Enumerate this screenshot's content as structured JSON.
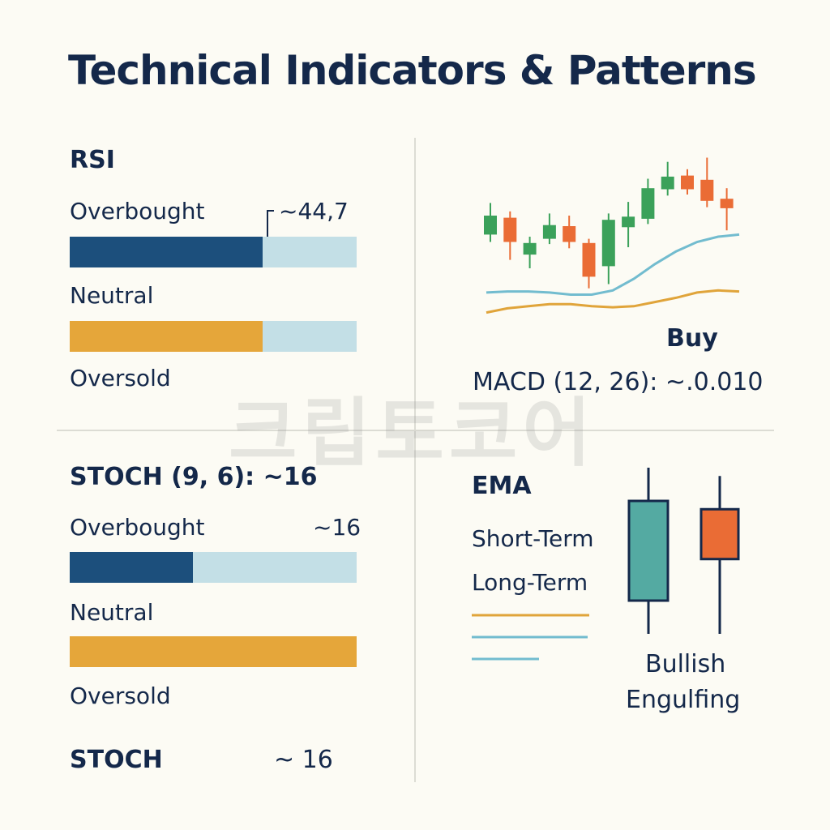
{
  "title": "Technical Indicators & Patterns",
  "watermark": "크립토코어",
  "colors": {
    "navy": "#1c4f7c",
    "light_blue": "#c3dfe6",
    "gold": "#e5a63a",
    "green": "#3ba15a",
    "orange": "#ea6c35",
    "teal": "#54aaa2",
    "teal_line": "#72bccf",
    "gold_line": "#e0a43a"
  },
  "rsi": {
    "heading": "RSI",
    "value_label": "~44,7",
    "bars": [
      {
        "label": "Overbought",
        "fill": 0.673
      },
      {
        "label": "Neutral",
        "fill": 0.673
      },
      {
        "label": "Oversold"
      }
    ]
  },
  "stoch_panel": {
    "heading": "STOCH (9, 6): ~16",
    "value_label": "~16",
    "bars": [
      {
        "label": "Overbought",
        "fill": 0.43
      },
      {
        "label": "Neutral",
        "fill": 1.0
      },
      {
        "label": "Oversold"
      }
    ],
    "footer_name": "STOCH",
    "footer_value": "~ 16"
  },
  "macd": {
    "signal": "Buy",
    "label": "MACD (12, 26): ~.0.010"
  },
  "ema": {
    "heading": "EMA",
    "short_label": "Short-Term",
    "long_label": "Long-Term",
    "legend_lines": [
      "gold",
      "teal",
      "teal"
    ]
  },
  "pattern": {
    "line1": "Bullish",
    "line2": "Engulfing"
  },
  "chart_data": [
    {
      "type": "candlestick",
      "candles": [
        {
          "dir": "up",
          "open": 0.62,
          "close": 0.8,
          "high": 0.92,
          "low": 0.55
        },
        {
          "dir": "down",
          "open": 0.78,
          "close": 0.55,
          "high": 0.84,
          "low": 0.38
        },
        {
          "dir": "up",
          "open": 0.43,
          "close": 0.54,
          "high": 0.6,
          "low": 0.3
        },
        {
          "dir": "up",
          "open": 0.58,
          "close": 0.71,
          "high": 0.82,
          "low": 0.53
        },
        {
          "dir": "down",
          "open": 0.7,
          "close": 0.55,
          "high": 0.8,
          "low": 0.49
        },
        {
          "dir": "down",
          "open": 0.54,
          "close": 0.22,
          "high": 0.58,
          "low": 0.11
        },
        {
          "dir": "up",
          "open": 0.32,
          "close": 0.76,
          "high": 0.82,
          "low": 0.15
        },
        {
          "dir": "up",
          "open": 0.69,
          "close": 0.79,
          "high": 0.93,
          "low": 0.5
        },
        {
          "dir": "up",
          "open": 0.77,
          "close": 1.06,
          "high": 1.15,
          "low": 0.72
        },
        {
          "dir": "up",
          "open": 1.05,
          "close": 1.17,
          "high": 1.31,
          "low": 0.99
        },
        {
          "dir": "down",
          "open": 1.18,
          "close": 1.05,
          "high": 1.24,
          "low": 1.0
        },
        {
          "dir": "down",
          "open": 1.14,
          "close": 0.94,
          "high": 1.35,
          "low": 0.88
        },
        {
          "dir": "down",
          "open": 0.96,
          "close": 0.87,
          "high": 1.06,
          "low": 0.66
        }
      ],
      "ema_short": [
        0.07,
        0.08,
        0.08,
        0.07,
        0.05,
        0.05,
        0.09,
        0.2,
        0.34,
        0.46,
        0.55,
        0.6,
        0.62
      ],
      "ema_long": [
        -0.12,
        -0.08,
        -0.06,
        -0.04,
        -0.04,
        -0.06,
        -0.07,
        -0.06,
        -0.02,
        0.02,
        0.07,
        0.09,
        0.08
      ]
    },
    {
      "type": "candlestick",
      "candles": [
        {
          "dir": "up",
          "open": 0.2,
          "close": 0.8,
          "high": 1.0,
          "low": 0.0
        },
        {
          "dir": "down",
          "open": 0.75,
          "close": 0.45,
          "high": 0.95,
          "low": 0.0
        }
      ]
    }
  ]
}
